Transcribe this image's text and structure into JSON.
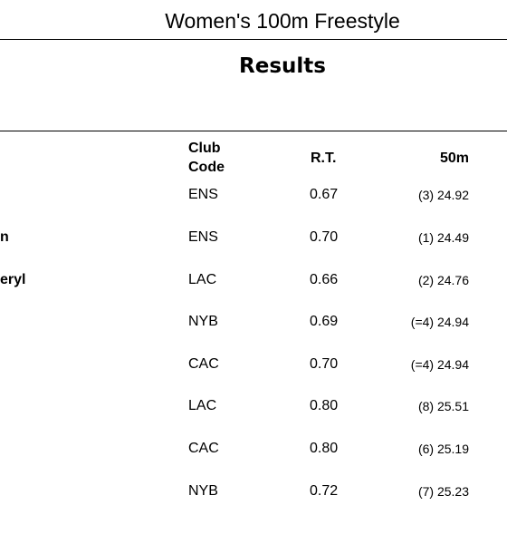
{
  "event_title": "Women's 100m Freestyle",
  "section_title": "Results",
  "columns": {
    "club_line1": "Club",
    "club_line2": "Code",
    "reaction_time": "R.T.",
    "split_50m": "50m"
  },
  "rows": [
    {
      "name": "",
      "club": "ENS",
      "rt": "0.67",
      "split": "(3) 24.92"
    },
    {
      "name": "n",
      "club": "ENS",
      "rt": "0.70",
      "split": "(1) 24.49"
    },
    {
      "name": "eryl",
      "club": "LAC",
      "rt": "0.66",
      "split": "(2) 24.76"
    },
    {
      "name": "",
      "club": "NYB",
      "rt": "0.69",
      "split": "(=4) 24.94"
    },
    {
      "name": "",
      "club": "CAC",
      "rt": "0.70",
      "split": "(=4) 24.94"
    },
    {
      "name": "",
      "club": "LAC",
      "rt": "0.80",
      "split": "(8) 25.51"
    },
    {
      "name": "",
      "club": "CAC",
      "rt": "0.80",
      "split": "(6) 25.19"
    },
    {
      "name": "",
      "club": "NYB",
      "rt": "0.72",
      "split": "(7) 25.23"
    }
  ]
}
